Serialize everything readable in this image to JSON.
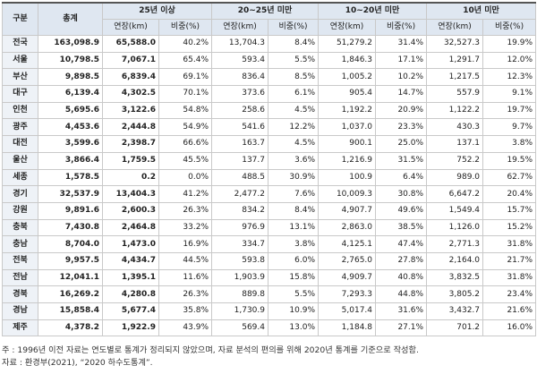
{
  "table": {
    "col_region": "구분",
    "col_total": "총계",
    "groups": [
      "25년 이상",
      "20~25년 미만",
      "10~20년 미만",
      "10년 미만"
    ],
    "sub_length": "연장(km)",
    "sub_share": "비중(%)",
    "rows": [
      {
        "region": "전국",
        "total": "163,098.9",
        "g1_len": "65,588.0",
        "g1_pct": "40.2%",
        "g2_len": "13,704.3",
        "g2_pct": "8.4%",
        "g3_len": "51,279.2",
        "g3_pct": "31.4%",
        "g4_len": "32,527.3",
        "g4_pct": "19.9%"
      },
      {
        "region": "서울",
        "total": "10,798.5",
        "g1_len": "7,067.1",
        "g1_pct": "65.4%",
        "g2_len": "593.4",
        "g2_pct": "5.5%",
        "g3_len": "1,846.3",
        "g3_pct": "17.1%",
        "g4_len": "1,291.7",
        "g4_pct": "12.0%"
      },
      {
        "region": "부산",
        "total": "9,898.5",
        "g1_len": "6,839.4",
        "g1_pct": "69.1%",
        "g2_len": "836.4",
        "g2_pct": "8.5%",
        "g3_len": "1,005.2",
        "g3_pct": "10.2%",
        "g4_len": "1,217.5",
        "g4_pct": "12.3%"
      },
      {
        "region": "대구",
        "total": "6,139.4",
        "g1_len": "4,302.5",
        "g1_pct": "70.1%",
        "g2_len": "373.6",
        "g2_pct": "6.1%",
        "g3_len": "905.4",
        "g3_pct": "14.7%",
        "g4_len": "557.9",
        "g4_pct": "9.1%"
      },
      {
        "region": "인천",
        "total": "5,695.6",
        "g1_len": "3,122.6",
        "g1_pct": "54.8%",
        "g2_len": "258.6",
        "g2_pct": "4.5%",
        "g3_len": "1,192.2",
        "g3_pct": "20.9%",
        "g4_len": "1,122.2",
        "g4_pct": "19.7%"
      },
      {
        "region": "광주",
        "total": "4,453.6",
        "g1_len": "2,444.8",
        "g1_pct": "54.9%",
        "g2_len": "541.6",
        "g2_pct": "12.2%",
        "g3_len": "1,037.0",
        "g3_pct": "23.3%",
        "g4_len": "430.3",
        "g4_pct": "9.7%"
      },
      {
        "region": "대전",
        "total": "3,599.6",
        "g1_len": "2,398.7",
        "g1_pct": "66.6%",
        "g2_len": "163.7",
        "g2_pct": "4.5%",
        "g3_len": "900.1",
        "g3_pct": "25.0%",
        "g4_len": "137.1",
        "g4_pct": "3.8%"
      },
      {
        "region": "울산",
        "total": "3,866.4",
        "g1_len": "1,759.5",
        "g1_pct": "45.5%",
        "g2_len": "137.7",
        "g2_pct": "3.6%",
        "g3_len": "1,216.9",
        "g3_pct": "31.5%",
        "g4_len": "752.2",
        "g4_pct": "19.5%"
      },
      {
        "region": "세종",
        "total": "1,578.5",
        "g1_len": "0.2",
        "g1_pct": "0.0%",
        "g2_len": "488.5",
        "g2_pct": "30.9%",
        "g3_len": "100.9",
        "g3_pct": "6.4%",
        "g4_len": "989.0",
        "g4_pct": "62.7%"
      },
      {
        "region": "경기",
        "total": "32,537.9",
        "g1_len": "13,404.3",
        "g1_pct": "41.2%",
        "g2_len": "2,477.2",
        "g2_pct": "7.6%",
        "g3_len": "10,009.3",
        "g3_pct": "30.8%",
        "g4_len": "6,647.2",
        "g4_pct": "20.4%"
      },
      {
        "region": "강원",
        "total": "9,891.6",
        "g1_len": "2,600.3",
        "g1_pct": "26.3%",
        "g2_len": "834.2",
        "g2_pct": "8.4%",
        "g3_len": "4,907.7",
        "g3_pct": "49.6%",
        "g4_len": "1,549.4",
        "g4_pct": "15.7%"
      },
      {
        "region": "충북",
        "total": "7,430.8",
        "g1_len": "2,464.8",
        "g1_pct": "33.2%",
        "g2_len": "976.9",
        "g2_pct": "13.1%",
        "g3_len": "2,863.0",
        "g3_pct": "38.5%",
        "g4_len": "1,126.0",
        "g4_pct": "15.2%"
      },
      {
        "region": "충남",
        "total": "8,704.0",
        "g1_len": "1,473.0",
        "g1_pct": "16.9%",
        "g2_len": "334.7",
        "g2_pct": "3.8%",
        "g3_len": "4,125.1",
        "g3_pct": "47.4%",
        "g4_len": "2,771.3",
        "g4_pct": "31.8%"
      },
      {
        "region": "전북",
        "total": "9,957.5",
        "g1_len": "4,434.7",
        "g1_pct": "44.5%",
        "g2_len": "593.8",
        "g2_pct": "6.0%",
        "g3_len": "2,765.0",
        "g3_pct": "27.8%",
        "g4_len": "2,164.0",
        "g4_pct": "21.7%"
      },
      {
        "region": "전남",
        "total": "12,041.1",
        "g1_len": "1,395.1",
        "g1_pct": "11.6%",
        "g2_len": "1,903.9",
        "g2_pct": "15.8%",
        "g3_len": "4,909.7",
        "g3_pct": "40.8%",
        "g4_len": "3,832.5",
        "g4_pct": "31.8%"
      },
      {
        "region": "경북",
        "total": "16,269.2",
        "g1_len": "4,280.8",
        "g1_pct": "26.3%",
        "g2_len": "889.8",
        "g2_pct": "5.5%",
        "g3_len": "7,293.3",
        "g3_pct": "44.8%",
        "g4_len": "3,805.2",
        "g4_pct": "23.4%"
      },
      {
        "region": "경남",
        "total": "15,858.4",
        "g1_len": "5,677.4",
        "g1_pct": "35.8%",
        "g2_len": "1,730.9",
        "g2_pct": "10.9%",
        "g3_len": "5,017.4",
        "g3_pct": "31.6%",
        "g4_len": "3,432.7",
        "g4_pct": "21.6%"
      },
      {
        "region": "제주",
        "total": "4,378.2",
        "g1_len": "1,922.9",
        "g1_pct": "43.9%",
        "g2_len": "569.4",
        "g2_pct": "13.0%",
        "g3_len": "1,184.8",
        "g3_pct": "27.1%",
        "g4_len": "701.2",
        "g4_pct": "16.0%"
      }
    ]
  },
  "notes": {
    "note": "주 : 1996년 이전 자료는 연도별로 통계가 정리되지 않았으며, 자료 분석의 편의를 위해 2020년 통계를 기준으로 작성함.",
    "source": "자료 : 환경부(2021), “2020 하수도통계”."
  }
}
